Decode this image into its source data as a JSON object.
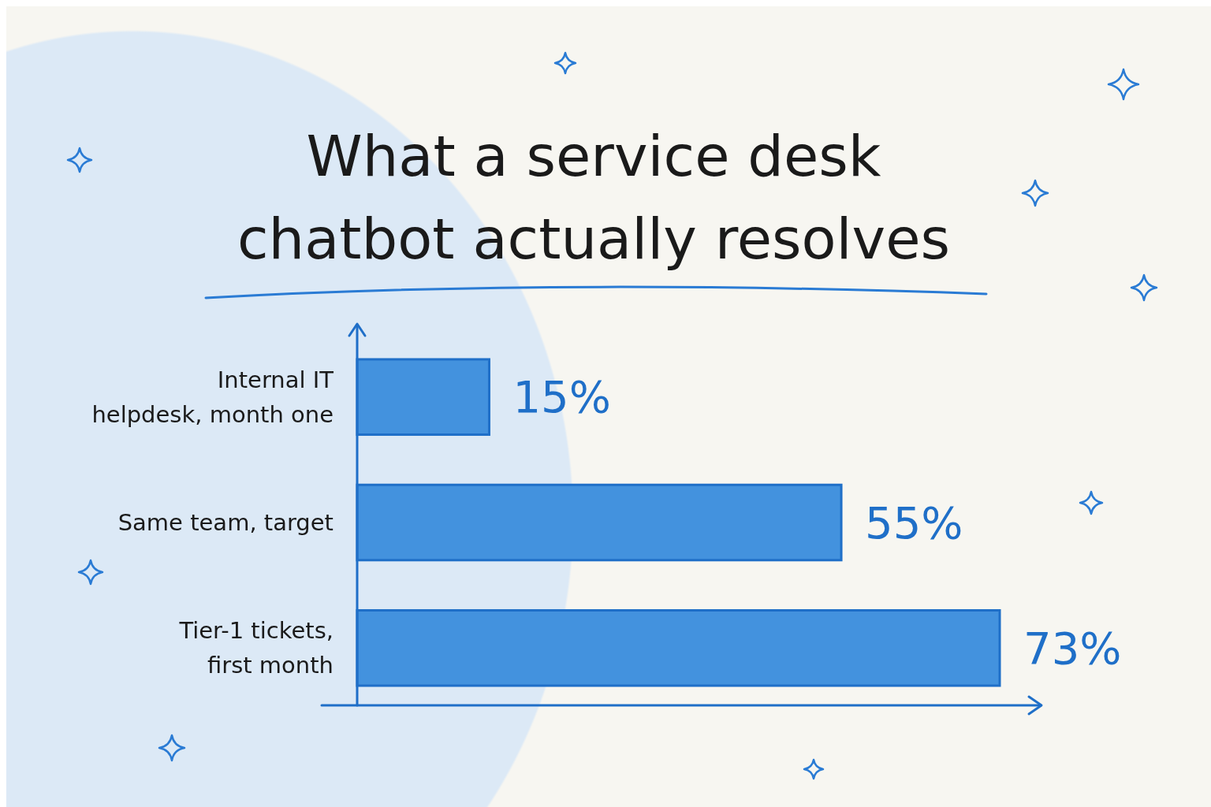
{
  "chart_data": {
    "type": "bar",
    "orientation": "horizontal",
    "title": "What a service desk chatbot actually resolves",
    "categories": [
      "Internal IT helpdesk, month one",
      "Same team, target",
      "Tier-1 tickets, first month"
    ],
    "values": [
      15,
      55,
      73
    ],
    "value_labels": [
      "15%",
      "55%",
      "73%"
    ],
    "color": "#4392de",
    "tick_labels": "y"
  }
}
